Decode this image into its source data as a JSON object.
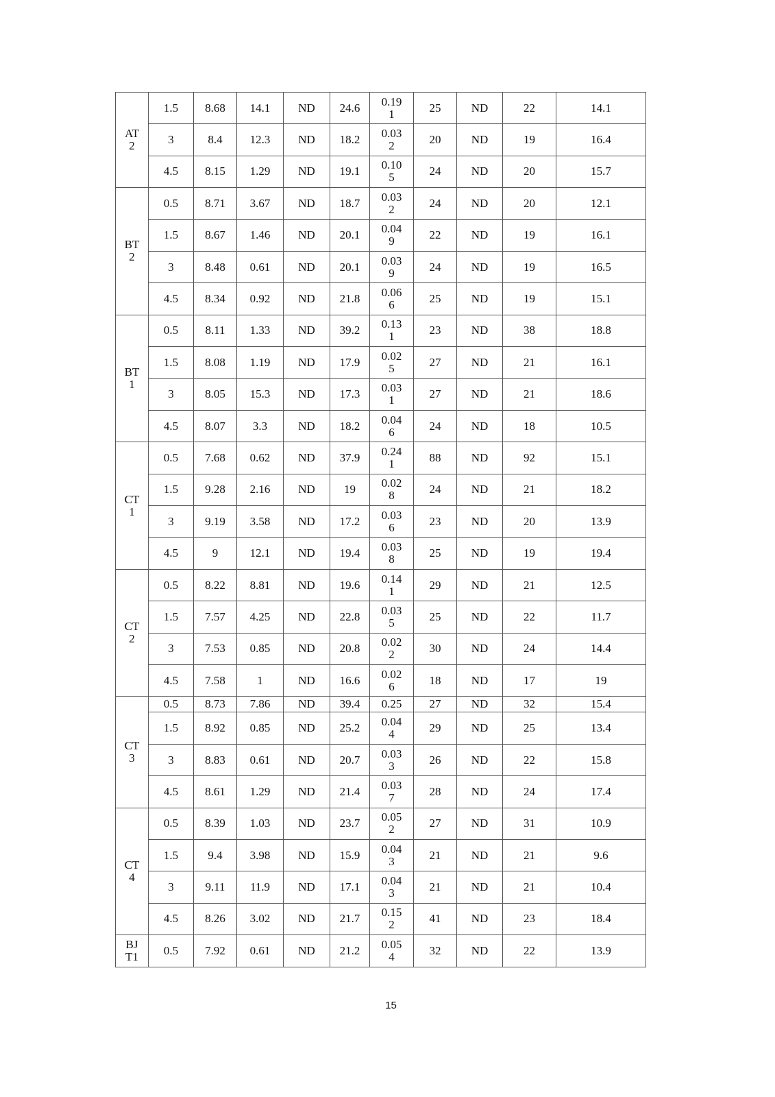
{
  "table": {
    "groups": [
      {
        "label": "AT2",
        "rows": [
          [
            "1.5",
            "8.68",
            "14.1",
            "ND",
            "24.6",
            "0.191",
            "25",
            "ND",
            "22",
            "14.1"
          ],
          [
            "3",
            "8.4",
            "12.3",
            "ND",
            "18.2",
            "0.032",
            "20",
            "ND",
            "19",
            "16.4"
          ],
          [
            "4.5",
            "8.15",
            "1.29",
            "ND",
            "19.1",
            "0.105",
            "24",
            "ND",
            "20",
            "15.7"
          ]
        ]
      },
      {
        "label": "BT2",
        "rows": [
          [
            "0.5",
            "8.71",
            "3.67",
            "ND",
            "18.7",
            "0.032",
            "24",
            "ND",
            "20",
            "12.1"
          ],
          [
            "1.5",
            "8.67",
            "1.46",
            "ND",
            "20.1",
            "0.049",
            "22",
            "ND",
            "19",
            "16.1"
          ],
          [
            "3",
            "8.48",
            "0.61",
            "ND",
            "20.1",
            "0.039",
            "24",
            "ND",
            "19",
            "16.5"
          ],
          [
            "4.5",
            "8.34",
            "0.92",
            "ND",
            "21.8",
            "0.066",
            "25",
            "ND",
            "19",
            "15.1"
          ]
        ]
      },
      {
        "label": "BT1",
        "rows": [
          [
            "0.5",
            "8.11",
            "1.33",
            "ND",
            "39.2",
            "0.131",
            "23",
            "ND",
            "38",
            "18.8"
          ],
          [
            "1.5",
            "8.08",
            "1.19",
            "ND",
            "17.9",
            "0.025",
            "27",
            "ND",
            "21",
            "16.1"
          ],
          [
            "3",
            "8.05",
            "15.3",
            "ND",
            "17.3",
            "0.031",
            "27",
            "ND",
            "21",
            "18.6"
          ],
          [
            "4.5",
            "8.07",
            "3.3",
            "ND",
            "18.2",
            "0.046",
            "24",
            "ND",
            "18",
            "10.5"
          ]
        ]
      },
      {
        "label": "CT1",
        "rows": [
          [
            "0.5",
            "7.68",
            "0.62",
            "ND",
            "37.9",
            "0.241",
            "88",
            "ND",
            "92",
            "15.1"
          ],
          [
            "1.5",
            "9.28",
            "2.16",
            "ND",
            "19",
            "0.028",
            "24",
            "ND",
            "21",
            "18.2"
          ],
          [
            "3",
            "9.19",
            "3.58",
            "ND",
            "17.2",
            "0.036",
            "23",
            "ND",
            "20",
            "13.9"
          ],
          [
            "4.5",
            "9",
            "12.1",
            "ND",
            "19.4",
            "0.038",
            "25",
            "ND",
            "19",
            "19.4"
          ]
        ]
      },
      {
        "label": "CT2",
        "rows": [
          [
            "0.5",
            "8.22",
            "8.81",
            "ND",
            "19.6",
            "0.141",
            "29",
            "ND",
            "21",
            "12.5"
          ],
          [
            "1.5",
            "7.57",
            "4.25",
            "ND",
            "22.8",
            "0.035",
            "25",
            "ND",
            "22",
            "11.7"
          ],
          [
            "3",
            "7.53",
            "0.85",
            "ND",
            "20.8",
            "0.022",
            "30",
            "ND",
            "24",
            "14.4"
          ],
          [
            "4.5",
            "7.58",
            "1",
            "ND",
            "16.6",
            "0.026",
            "18",
            "ND",
            "17",
            "19"
          ]
        ]
      },
      {
        "label": "CT3",
        "rows": [
          [
            "0.5",
            "8.73",
            "7.86",
            "ND",
            "39.4",
            "0.25",
            "27",
            "ND",
            "32",
            "15.4"
          ],
          [
            "1.5",
            "8.92",
            "0.85",
            "ND",
            "25.2",
            "0.044",
            "29",
            "ND",
            "25",
            "13.4"
          ],
          [
            "3",
            "8.83",
            "0.61",
            "ND",
            "20.7",
            "0.033",
            "26",
            "ND",
            "22",
            "15.8"
          ],
          [
            "4.5",
            "8.61",
            "1.29",
            "ND",
            "21.4",
            "0.037",
            "28",
            "ND",
            "24",
            "17.4"
          ]
        ]
      },
      {
        "label": "CT4",
        "rows": [
          [
            "0.5",
            "8.39",
            "1.03",
            "ND",
            "23.7",
            "0.052",
            "27",
            "ND",
            "31",
            "10.9"
          ],
          [
            "1.5",
            "9.4",
            "3.98",
            "ND",
            "15.9",
            "0.043",
            "21",
            "ND",
            "21",
            "9.6"
          ],
          [
            "3",
            "9.11",
            "11.9",
            "ND",
            "17.1",
            "0.043",
            "21",
            "ND",
            "21",
            "10.4"
          ],
          [
            "4.5",
            "8.26",
            "3.02",
            "ND",
            "21.7",
            "0.152",
            "41",
            "ND",
            "23",
            "18.4"
          ]
        ]
      },
      {
        "label": "BJT1",
        "rows": [
          [
            "0.5",
            "7.92",
            "0.61",
            "ND",
            "21.2",
            "0.054",
            "32",
            "ND",
            "22",
            "13.9"
          ]
        ]
      }
    ]
  },
  "page_number": "15"
}
